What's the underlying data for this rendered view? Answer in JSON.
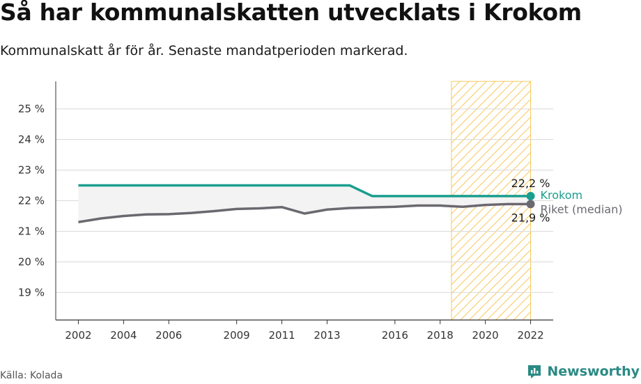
{
  "header": {
    "title": "Så har kommunalskatten utvecklats i Krokom",
    "subtitle": "Kommunalskatt år för år. Senaste mandatperioden markerad."
  },
  "footer": {
    "source": "Källa: Kolada",
    "brand": "Newsworthy"
  },
  "colors": {
    "krokom": "#1a9e8f",
    "riket": "#6b6870",
    "highlight": "#f6c75a",
    "grid": "#d9d9d9"
  },
  "chart_data": {
    "type": "line",
    "title": "Så har kommunalskatten utvecklats i Krokom",
    "subtitle": "Kommunalskatt år för år. Senaste mandatperioden markerad.",
    "x": [
      2002,
      2003,
      2004,
      2005,
      2006,
      2007,
      2008,
      2009,
      2010,
      2011,
      2012,
      2013,
      2014,
      2015,
      2016,
      2017,
      2018,
      2019,
      2020,
      2021,
      2022
    ],
    "series": [
      {
        "name": "Krokom",
        "values": [
          22.5,
          22.5,
          22.5,
          22.5,
          22.5,
          22.5,
          22.5,
          22.5,
          22.5,
          22.5,
          22.5,
          22.5,
          22.5,
          22.15,
          22.15,
          22.15,
          22.15,
          22.15,
          22.15,
          22.15,
          22.15
        ],
        "end_label": "22,2 %"
      },
      {
        "name": "Riket (median)",
        "values": [
          21.3,
          21.42,
          21.5,
          21.55,
          21.56,
          21.6,
          21.66,
          21.73,
          21.75,
          21.79,
          21.58,
          21.71,
          21.76,
          21.78,
          21.8,
          21.84,
          21.84,
          21.8,
          21.86,
          21.89,
          21.89
        ],
        "end_label": "21,9 %"
      }
    ],
    "x_ticks": [
      2002,
      2004,
      2006,
      2009,
      2011,
      2013,
      2016,
      2018,
      2020,
      2022
    ],
    "x_tick_labels": [
      "2002",
      "2004",
      "2006",
      "2009",
      "2011",
      "2013",
      "2016",
      "2018",
      "2020",
      "2022"
    ],
    "y_ticks": [
      19,
      20,
      21,
      22,
      23,
      24,
      25
    ],
    "y_tick_labels": [
      "19 %",
      "20 %",
      "21 %",
      "22 %",
      "23 %",
      "24 %",
      "25 %"
    ],
    "xlim": [
      2001,
      2023
    ],
    "ylim": [
      18.1,
      25.9
    ],
    "highlight_period": [
      2018.5,
      2022
    ],
    "grid": true
  }
}
